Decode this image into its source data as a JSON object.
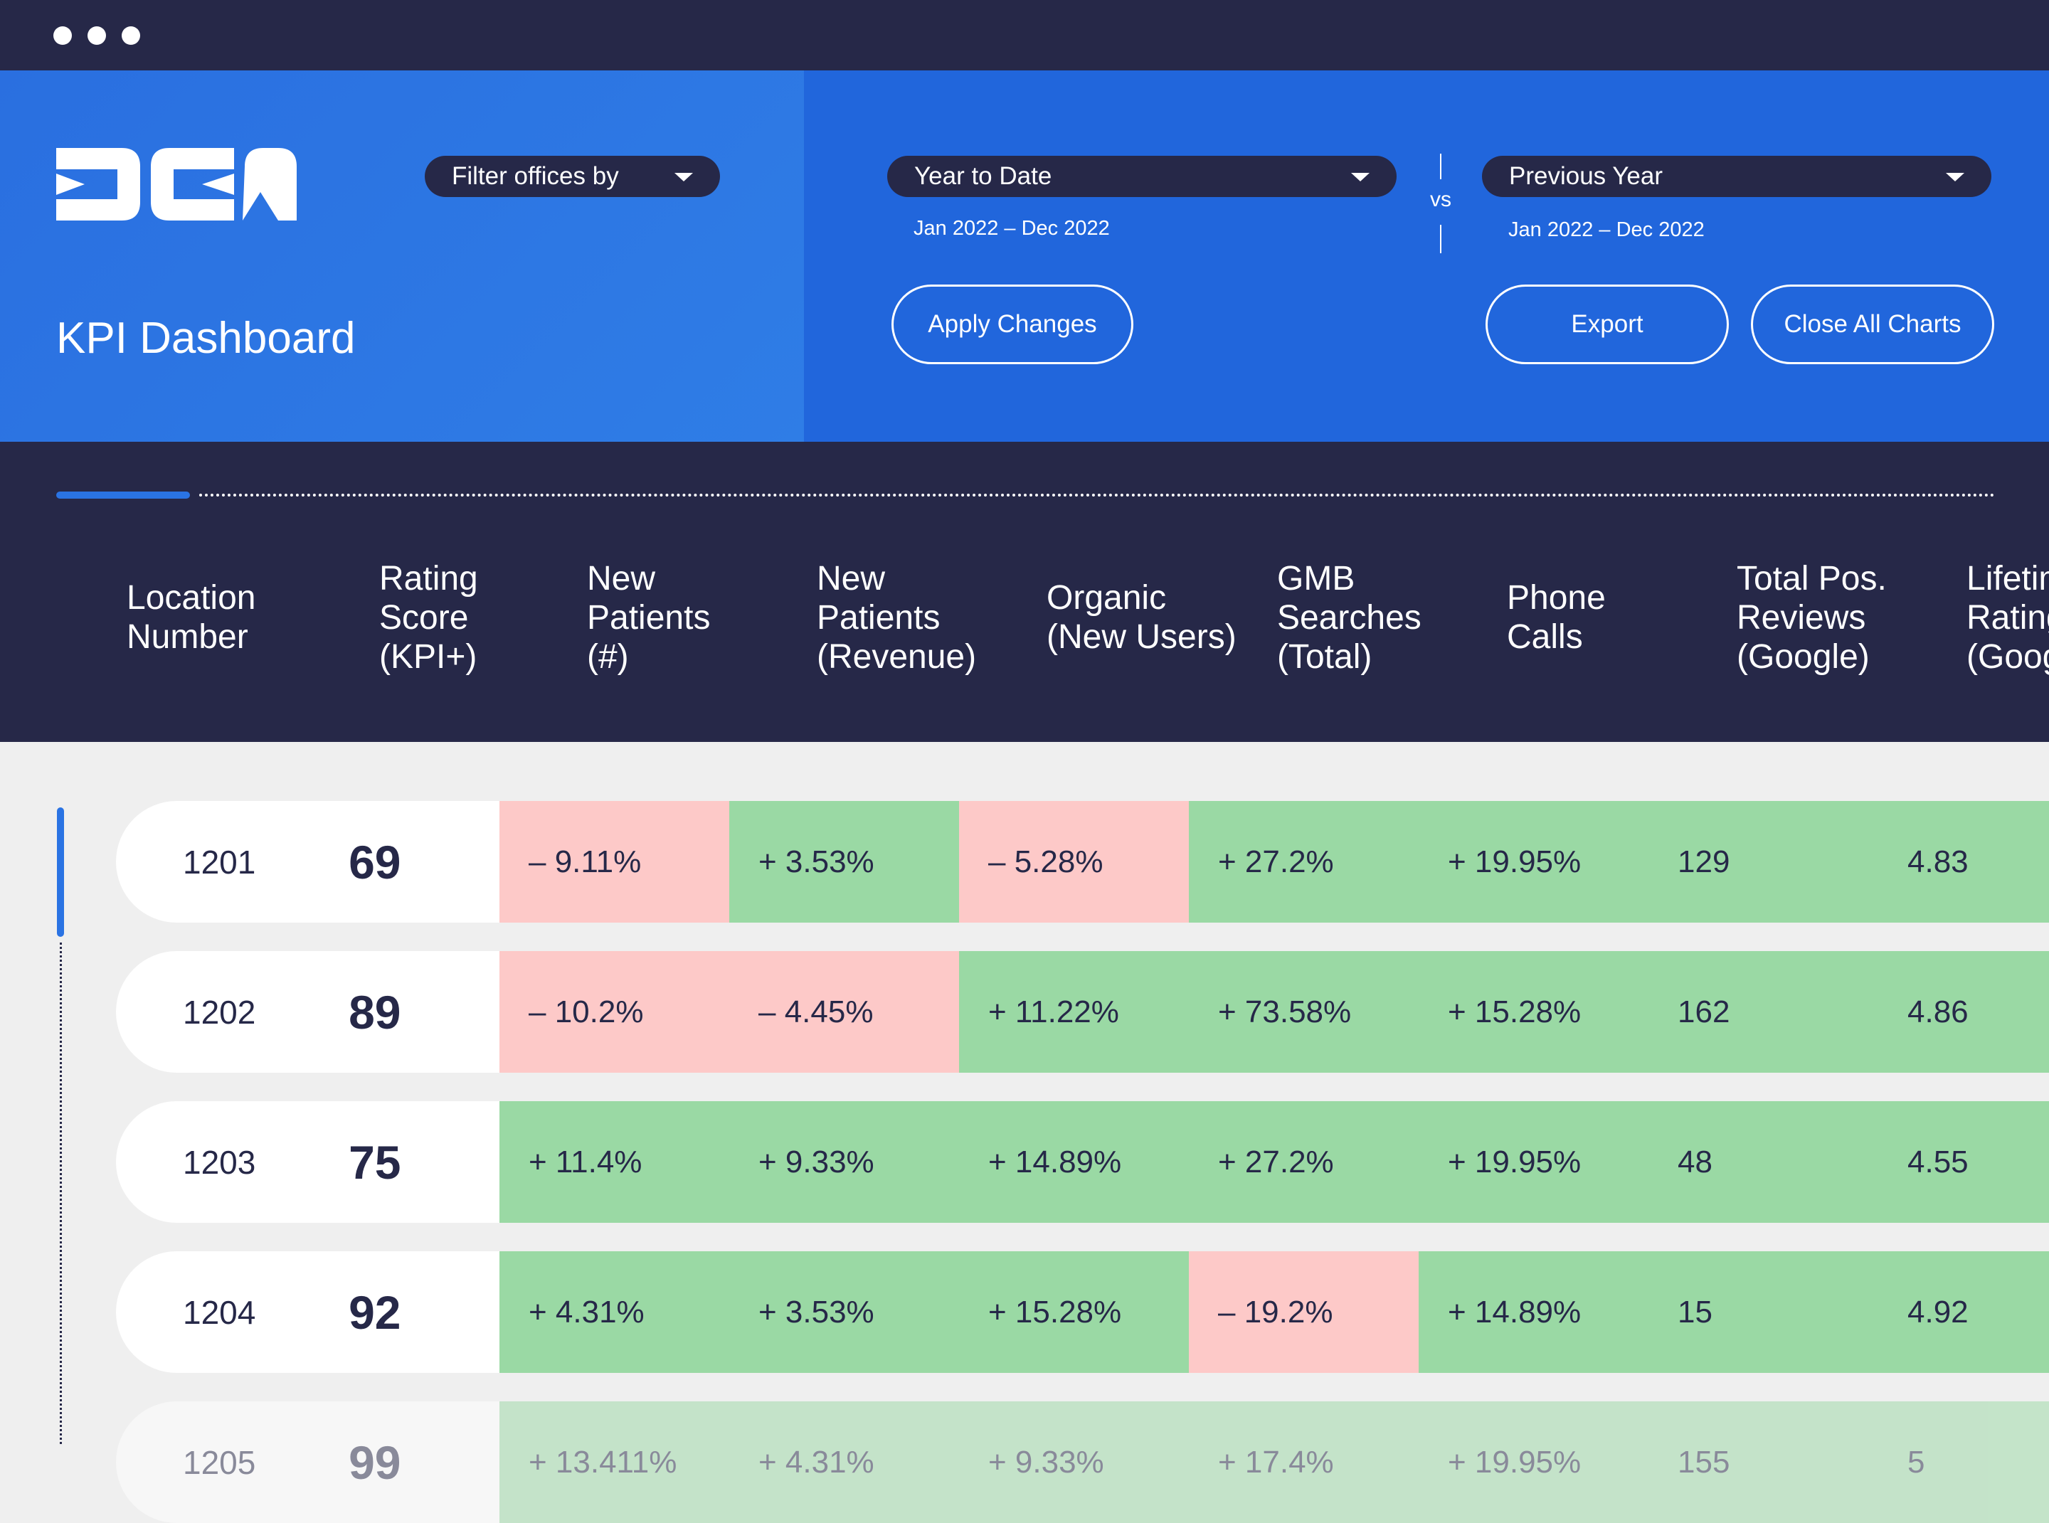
{
  "header": {
    "title": "KPI Dashboard",
    "filter": "Filter offices by",
    "period": {
      "label": "Year to Date",
      "range": "Jan 2022 – Dec 2022"
    },
    "vs": "vs",
    "compare": {
      "label": "Previous Year",
      "range": "Jan 2022 – Dec 2022"
    },
    "buttons": [
      "Apply Changes",
      "Export",
      "Close All Charts"
    ]
  },
  "table": {
    "columns": [
      [
        "Location",
        "Number"
      ],
      [
        "Rating",
        "Score",
        "(KPI+)"
      ],
      [
        "New",
        "Patients",
        "(#)"
      ],
      [
        "New",
        "Patients",
        "(Revenue)"
      ],
      [
        "Organic",
        "(New Users)"
      ],
      [
        "GMB",
        "Searches",
        "(Total)"
      ],
      [
        "Phone",
        "Calls"
      ],
      [
        "Total Pos.",
        "Reviews",
        "(Google)"
      ],
      [
        "Lifetime",
        "Rating",
        "(Google)"
      ]
    ],
    "rows": [
      {
        "location": "1201",
        "score": "69",
        "cells": [
          {
            "text": "– 9.11%",
            "color": "#fdc9c8"
          },
          {
            "text": "+ 3.53%",
            "color": "#9ad9a4"
          },
          {
            "text": "– 5.28%",
            "color": "#fdc9c8"
          },
          {
            "text": "+ 27.2%",
            "color": "#9ad9a4"
          },
          {
            "text": "+ 19.95%",
            "color": "#9ad9a4"
          },
          {
            "text": "129",
            "color": "#9ad9a4"
          },
          {
            "text": "4.83",
            "color": "#9ad9a4"
          }
        ]
      },
      {
        "location": "1202",
        "score": "89",
        "cells": [
          {
            "text": "– 10.2%",
            "color": "#fdc9c8"
          },
          {
            "text": "– 4.45%",
            "color": "#fdc9c8"
          },
          {
            "text": "+ 11.22%",
            "color": "#9ad9a4"
          },
          {
            "text": "+ 73.58%",
            "color": "#9ad9a4"
          },
          {
            "text": "+ 15.28%",
            "color": "#9ad9a4"
          },
          {
            "text": "162",
            "color": "#9ad9a4"
          },
          {
            "text": "4.86",
            "color": "#9ad9a4"
          }
        ]
      },
      {
        "location": "1203",
        "score": "75",
        "cells": [
          {
            "text": "+ 11.4%",
            "color": "#9ad9a4"
          },
          {
            "text": "+ 9.33%",
            "color": "#9ad9a4"
          },
          {
            "text": "+ 14.89%",
            "color": "#9ad9a4"
          },
          {
            "text": "+ 27.2%",
            "color": "#9ad9a4"
          },
          {
            "text": "+ 19.95%",
            "color": "#9ad9a4"
          },
          {
            "text": "48",
            "color": "#9ad9a4"
          },
          {
            "text": "4.55",
            "color": "#9ad9a4"
          }
        ]
      },
      {
        "location": "1204",
        "score": "92",
        "cells": [
          {
            "text": "+ 4.31%",
            "color": "#9ad9a4"
          },
          {
            "text": "+ 3.53%",
            "color": "#9ad9a4"
          },
          {
            "text": "+ 15.28%",
            "color": "#9ad9a4"
          },
          {
            "text": "– 19.2%",
            "color": "#fdc9c8"
          },
          {
            "text": "+ 14.89%",
            "color": "#9ad9a4"
          },
          {
            "text": "15",
            "color": "#9ad9a4"
          },
          {
            "text": "4.92",
            "color": "#9ad9a4"
          }
        ]
      },
      {
        "location": "1205",
        "score": "99",
        "cells": [
          {
            "text": "+ 13.411%",
            "color": "#9ad9a4"
          },
          {
            "text": "+ 4.31%",
            "color": "#9ad9a4"
          },
          {
            "text": "+ 9.33%",
            "color": "#9ad9a4"
          },
          {
            "text": "+ 17.4%",
            "color": "#9ad9a4"
          },
          {
            "text": "+ 19.95%",
            "color": "#9ad9a4"
          },
          {
            "text": "155",
            "color": "#9ad9a4"
          },
          {
            "text": "5",
            "color": "#9ad9a4"
          }
        ]
      }
    ]
  }
}
